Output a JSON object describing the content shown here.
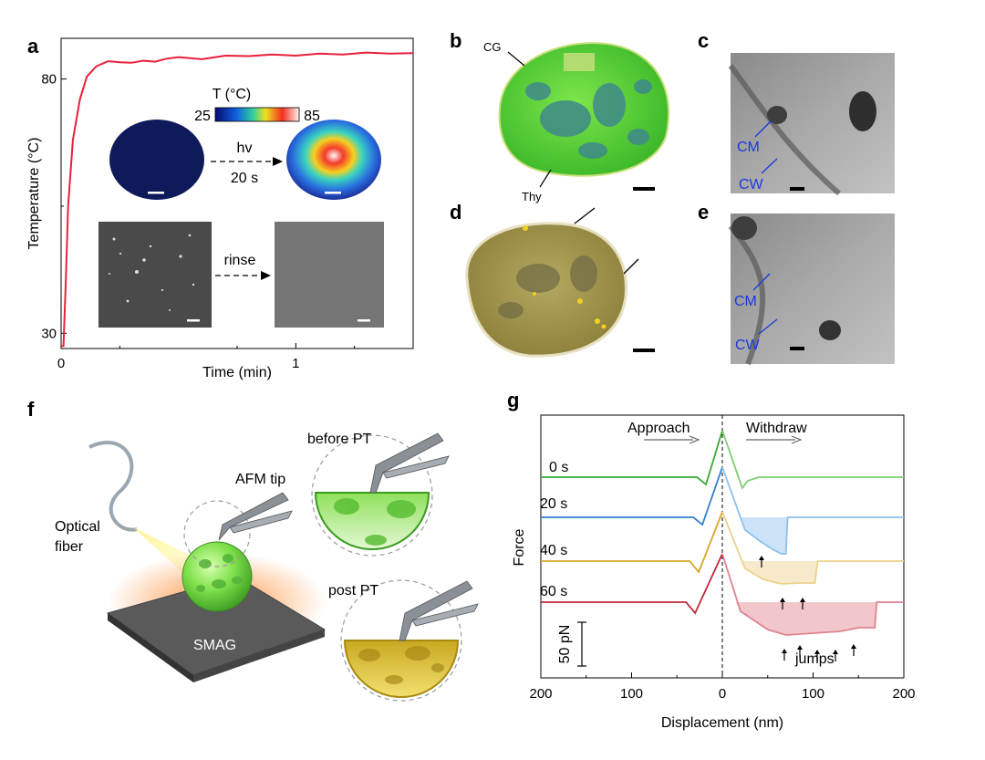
{
  "panel_labels": {
    "a": "a",
    "b": "b",
    "c": "c",
    "d": "d",
    "e": "e",
    "f": "f",
    "g": "g"
  },
  "panel_a": {
    "colorbar": {
      "title": "T (°C)",
      "min": "25",
      "max": "85"
    },
    "arrow1": {
      "top": "hv",
      "bottom": "20 s"
    },
    "arrow2": "rinse"
  },
  "panel_b": {
    "label_cg": "CG",
    "label_thy": "Thy"
  },
  "panel_c": {
    "label_cm": "CM",
    "label_cw": "CW"
  },
  "panel_e": {
    "label_cm": "CM",
    "label_cw": "CW"
  },
  "panel_f": {
    "optical_fiber_line1": "Optical",
    "optical_fiber_line2": "fiber",
    "afm_tip": "AFM tip",
    "before_pt": "before PT",
    "post_pt": "post PT",
    "smag": "SMAG"
  },
  "panel_g": {
    "approach": "Approach",
    "withdraw": "Withdraw",
    "scale_bar": "50 pN",
    "jumps": "jumps"
  },
  "chart_data": [
    {
      "type": "line",
      "panel": "a",
      "xlabel": "Time (min)",
      "ylabel": "Temperature (°C)",
      "xticks": [
        "0",
        "1"
      ],
      "yticks": [
        "30",
        "80"
      ],
      "xlim": [
        0,
        1.5
      ],
      "ylim": [
        27,
        88
      ],
      "series": [
        {
          "color": "#e8203a",
          "x": [
            0,
            0.01,
            0.02,
            0.03,
            0.05,
            0.08,
            0.11,
            0.15,
            0.2,
            0.25,
            0.3,
            0.35,
            0.4,
            0.45,
            0.5,
            0.6,
            0.7,
            0.8,
            0.9,
            1.0,
            1.1,
            1.2,
            1.3,
            1.4,
            1.5
          ],
          "y": [
            27.5,
            27.5,
            40,
            55,
            68,
            76,
            80.5,
            82.5,
            83.5,
            83.3,
            83.2,
            83.6,
            83.4,
            84.0,
            84.3,
            83.9,
            84.6,
            84.5,
            84.8,
            84.6,
            85.0,
            84.8,
            85.2,
            85.0,
            85.1
          ]
        }
      ]
    },
    {
      "type": "line",
      "panel": "g",
      "xlabel": "Displacement (nm)",
      "ylabel": "Force",
      "xticks": [
        "200",
        "100",
        "0",
        "100",
        "200"
      ],
      "xlim": [
        -200,
        200
      ],
      "series": [
        {
          "name": "0 s",
          "color": "#3aaa35"
        },
        {
          "name": "20 s",
          "color": "#2f7fd0"
        },
        {
          "name": "40 s",
          "color": "#d8a52a"
        },
        {
          "name": "60 s",
          "color": "#c0283c"
        }
      ]
    }
  ]
}
